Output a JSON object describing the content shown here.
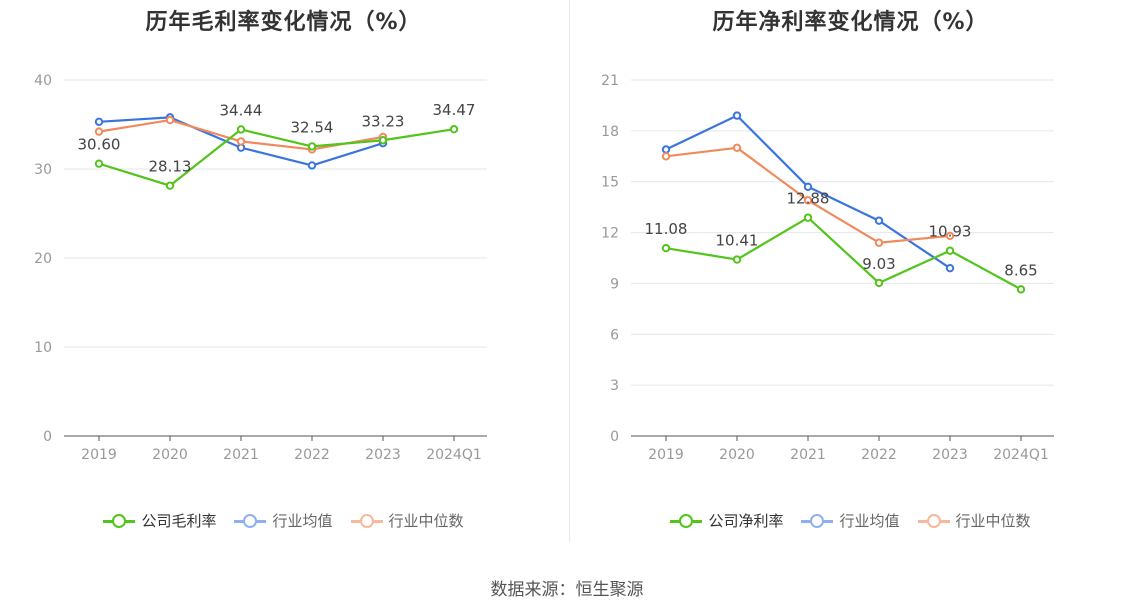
{
  "source": "数据来源：恒生聚源",
  "chart_data": [
    {
      "type": "line",
      "title": "历年毛利率变化情况（%）",
      "categories": [
        "2019",
        "2020",
        "2021",
        "2022",
        "2023",
        "2024Q1"
      ],
      "ylim": [
        0,
        40
      ],
      "yticks": [
        0,
        10,
        20,
        30,
        40
      ],
      "grid": true,
      "legend_position": "bottom",
      "series": [
        {
          "name": "公司毛利率",
          "color": "#52c41a",
          "values": [
            30.6,
            28.13,
            34.44,
            32.54,
            33.23,
            34.47
          ],
          "labels": [
            "30.60",
            "28.13",
            "34.44",
            "32.54",
            "33.23",
            "34.47"
          ]
        },
        {
          "name": "行业均值",
          "color": "#3a75dd",
          "values": [
            35.3,
            35.8,
            32.4,
            30.4,
            32.9,
            null
          ]
        },
        {
          "name": "行业中位数",
          "color": "#f08a5d",
          "values": [
            34.2,
            35.5,
            33.1,
            32.2,
            33.6,
            null
          ]
        }
      ]
    },
    {
      "type": "line",
      "title": "历年净利率变化情况（%）",
      "categories": [
        "2019",
        "2020",
        "2021",
        "2022",
        "2023",
        "2024Q1"
      ],
      "ylim": [
        0,
        21
      ],
      "yticks": [
        0,
        3,
        6,
        9,
        12,
        15,
        18,
        21
      ],
      "grid": true,
      "legend_position": "bottom",
      "series": [
        {
          "name": "公司净利率",
          "color": "#52c41a",
          "values": [
            11.08,
            10.41,
            12.88,
            9.03,
            10.93,
            8.65
          ],
          "labels": [
            "11.08",
            "10.41",
            "12.88",
            "9.03",
            "10.93",
            "8.65"
          ]
        },
        {
          "name": "行业均值",
          "color": "#3a75dd",
          "values": [
            16.9,
            18.9,
            14.7,
            12.7,
            9.9,
            null
          ]
        },
        {
          "name": "行业中位数",
          "color": "#f08a5d",
          "values": [
            16.5,
            17.0,
            13.9,
            11.4,
            11.8,
            null
          ]
        }
      ]
    }
  ]
}
